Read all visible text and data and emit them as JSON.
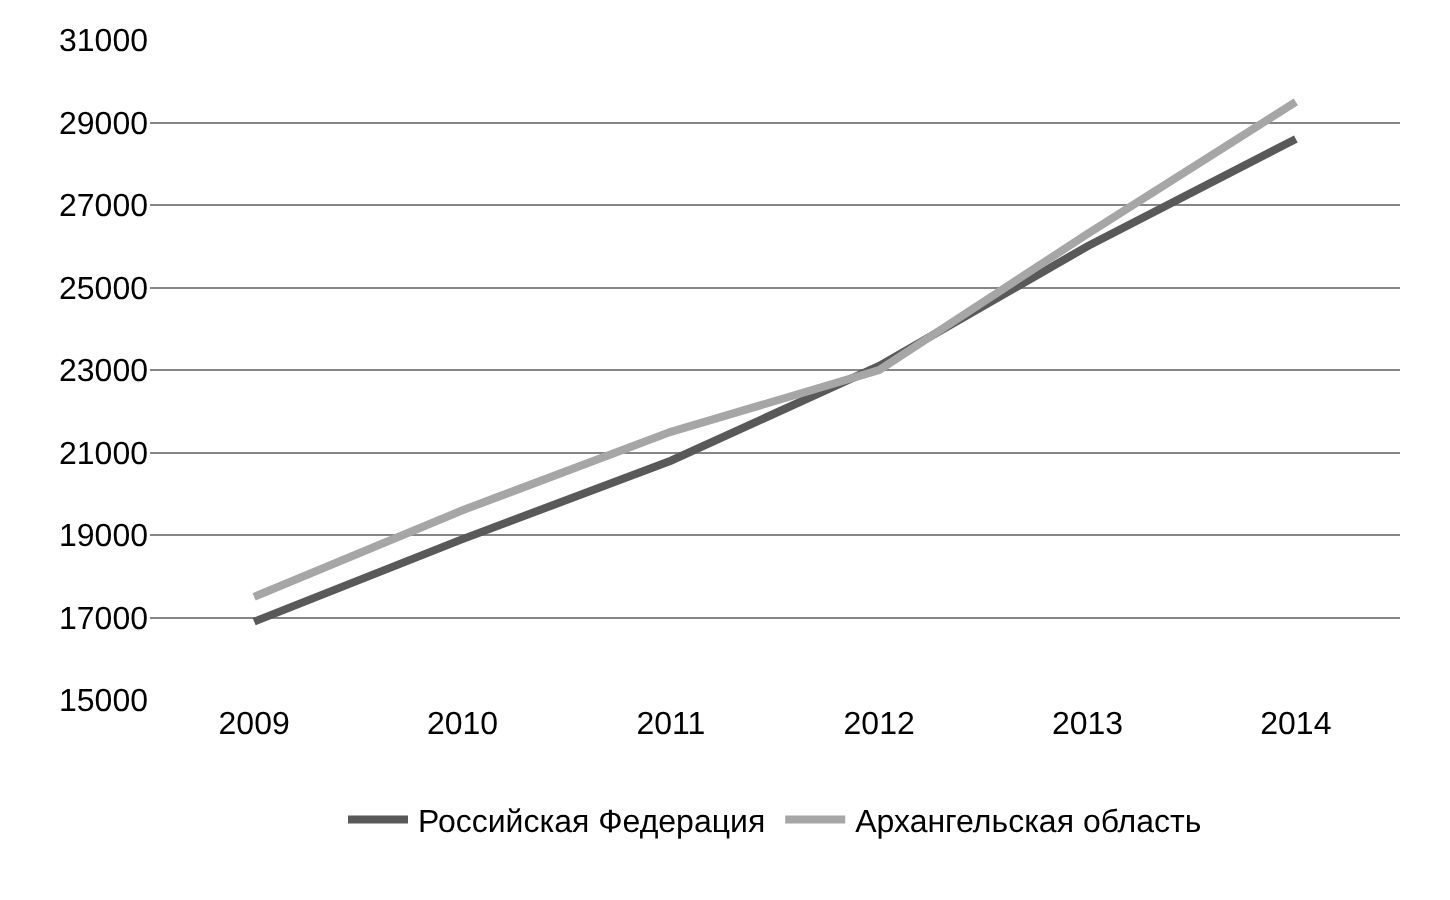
{
  "chart_data": {
    "type": "line",
    "categories": [
      "2009",
      "2010",
      "2011",
      "2012",
      "2013",
      "2014"
    ],
    "series": [
      {
        "name": "Российская Федерация",
        "color": "#595959",
        "values": [
          16900,
          18900,
          20800,
          23100,
          26000,
          28600
        ]
      },
      {
        "name": "Архангельская область",
        "color": "#a6a6a6",
        "values": [
          17500,
          19600,
          21500,
          23000,
          26300,
          29500
        ]
      }
    ],
    "ylim": [
      15000,
      31000
    ],
    "yticks": [
      15000,
      17000,
      19000,
      21000,
      23000,
      25000,
      27000,
      29000,
      31000
    ],
    "grid": "y",
    "legend": "bottom",
    "marker": "none",
    "line_style": "solid"
  }
}
